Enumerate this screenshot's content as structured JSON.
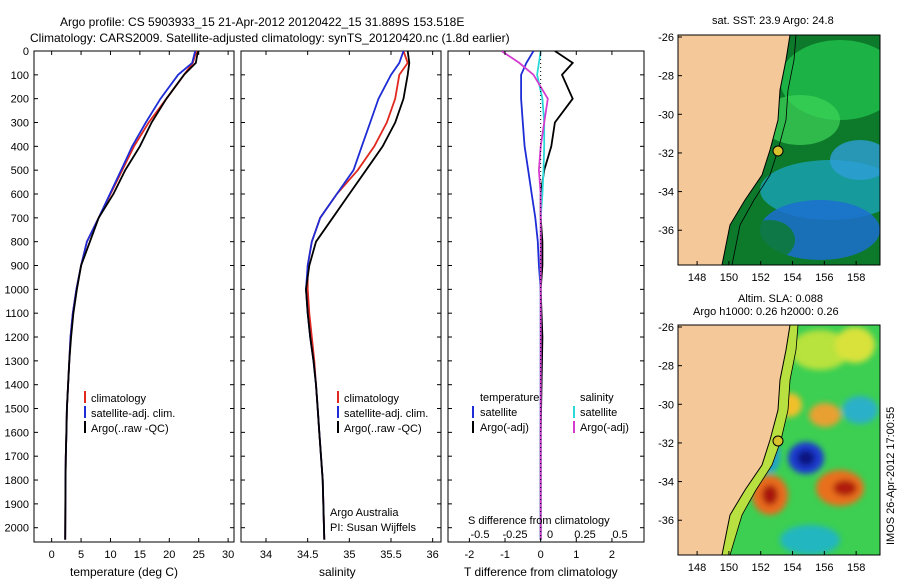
{
  "header": {
    "line1": "Argo profile: CS 5903933_15 21-Apr-2012 20120422_15 31.889S 153.518E",
    "line2": "Climatology: CARS2009. Satellite-adjusted climatology: synTS_20120420.nc (1.8d earlier)"
  },
  "colors": {
    "climatology": "#e0281e",
    "satellite": "#1e2cd6",
    "argo": "#000000",
    "sat_s": "#2ad8d8",
    "argo_s": "#d43cd0",
    "land": "#f5c89a"
  },
  "y_ticks": [
    "0",
    "100",
    "200",
    "300",
    "400",
    "500",
    "600",
    "700",
    "800",
    "900",
    "1000",
    "1100",
    "1200",
    "1300",
    "1400",
    "1500",
    "1600",
    "1700",
    "1800",
    "1900",
    "2000"
  ],
  "temp_panel": {
    "xlabel": "temperature (deg C)",
    "xticks": [
      "0",
      "5",
      "10",
      "15",
      "20",
      "25",
      "30"
    ],
    "legend": [
      "climatology",
      "satellite-adj. clim.",
      "Argo(..raw -QC)"
    ]
  },
  "sal_panel": {
    "xlabel": "salinity",
    "xticks": [
      "34",
      "34.5",
      "35",
      "35.5",
      "36"
    ],
    "legend": [
      "climatology",
      "satellite-adj. clim.",
      "Argo(..raw -QC)"
    ],
    "note1": "Argo Australia",
    "note2": "PI: Susan Wijffels"
  },
  "diff_panel": {
    "xlabel": "T difference from climatology",
    "xticks": [
      "-2",
      "-1",
      "0",
      "1",
      "2"
    ],
    "top_label": "S difference from climatology",
    "top_ticks": [
      "-0.5",
      "-0.25",
      "0",
      "0.25",
      "0.5"
    ],
    "legend_t_title": "temperature",
    "legend_s_title": "salinity",
    "legend_t": [
      "satellite",
      "Argo(-adj)"
    ],
    "legend_s": [
      "satellite",
      "Argo(-adj)"
    ]
  },
  "map_sst": {
    "title": "sat. SST: 23.9  Argo: 24.8",
    "yticks": [
      "-26",
      "-28",
      "-30",
      "-32",
      "-34",
      "-36"
    ],
    "xticks": [
      "148",
      "150",
      "152",
      "154",
      "156",
      "158"
    ]
  },
  "map_sla": {
    "title1": "Altim. SLA: 0.088",
    "title2": "Argo h1000: 0.26 h2000: 0.26",
    "yticks": [
      "-26",
      "-28",
      "-30",
      "-32",
      "-34",
      "-36"
    ],
    "xticks": [
      "148",
      "150",
      "152",
      "154",
      "156",
      "158"
    ]
  },
  "side_text": "IMOS 26-Apr-2012 17:00:55",
  "chart_data": [
    {
      "type": "line",
      "title": "",
      "xlabel": "temperature (deg C)",
      "ylabel": "",
      "xlim": [
        -3,
        31
      ],
      "ylim": [
        2060,
        0
      ],
      "series": [
        {
          "name": "climatology",
          "x": [
            24.6,
            24.0,
            22.5,
            19.5,
            16.5,
            14.0,
            12.0,
            10.0,
            8.0,
            6.0,
            5.0,
            4.2,
            3.6,
            3.2,
            3.0,
            2.8,
            2.6,
            2.5,
            2.4,
            2.35,
            2.3
          ],
          "y": [
            0,
            50,
            100,
            200,
            300,
            400,
            500,
            600,
            700,
            800,
            900,
            1000,
            1100,
            1200,
            1300,
            1400,
            1500,
            1600,
            1700,
            1800,
            2050
          ]
        },
        {
          "name": "satellite-adj. clim.",
          "x": [
            24.4,
            23.9,
            21.5,
            18.5,
            16.0,
            13.7,
            11.8,
            9.9,
            8.0,
            6.0,
            5.0,
            4.2,
            3.6,
            3.2,
            3.0,
            2.8,
            2.6,
            2.5,
            2.4,
            2.35,
            2.3
          ],
          "y": [
            0,
            50,
            100,
            200,
            300,
            400,
            500,
            600,
            700,
            800,
            900,
            1000,
            1100,
            1200,
            1300,
            1400,
            1500,
            1600,
            1700,
            1800,
            2050
          ]
        },
        {
          "name": "Argo(..raw -QC)",
          "x": [
            25.0,
            24.8,
            24.5,
            22.5,
            19.5,
            17.0,
            15.0,
            12.5,
            10.5,
            8.0,
            6.5,
            5.0,
            4.3,
            3.7,
            3.3,
            3.0,
            2.8,
            2.6,
            2.5,
            2.4,
            2.35,
            2.3
          ],
          "y": [
            0,
            10,
            50,
            100,
            200,
            300,
            400,
            500,
            600,
            700,
            800,
            900,
            1000,
            1100,
            1200,
            1300,
            1400,
            1500,
            1600,
            1700,
            1800,
            2050
          ]
        }
      ]
    },
    {
      "type": "line",
      "title": "",
      "xlabel": "salinity",
      "ylabel": "",
      "xlim": [
        33.7,
        36.1
      ],
      "ylim": [
        2060,
        0
      ],
      "series": [
        {
          "name": "climatology",
          "x": [
            35.65,
            35.7,
            35.6,
            35.55,
            35.45,
            35.3,
            35.1,
            34.85,
            34.65,
            34.55,
            34.5,
            34.5,
            34.52,
            34.55,
            34.58,
            34.6,
            34.62,
            34.64,
            34.66,
            34.68,
            34.7
          ],
          "y": [
            0,
            50,
            100,
            200,
            300,
            400,
            500,
            600,
            700,
            800,
            900,
            1000,
            1100,
            1200,
            1300,
            1400,
            1500,
            1600,
            1700,
            1800,
            2050
          ]
        },
        {
          "name": "satellite-adj. clim.",
          "x": [
            35.65,
            35.6,
            35.5,
            35.35,
            35.25,
            35.15,
            35.05,
            34.85,
            34.65,
            34.55,
            34.5,
            34.48,
            34.5,
            34.53,
            34.57,
            34.6,
            34.62,
            34.64,
            34.66,
            34.68,
            34.7
          ],
          "y": [
            0,
            50,
            100,
            200,
            300,
            400,
            500,
            600,
            700,
            800,
            900,
            1000,
            1100,
            1200,
            1300,
            1400,
            1500,
            1600,
            1700,
            1800,
            2050
          ]
        },
        {
          "name": "Argo(..raw -QC)",
          "x": [
            35.7,
            35.72,
            35.7,
            35.65,
            35.55,
            35.4,
            35.2,
            35.0,
            34.8,
            34.6,
            34.52,
            34.48,
            34.5,
            34.53,
            34.57,
            34.6,
            34.62,
            34.64,
            34.66,
            34.68,
            34.7
          ],
          "y": [
            0,
            50,
            100,
            200,
            300,
            400,
            500,
            600,
            700,
            800,
            900,
            1000,
            1100,
            1200,
            1300,
            1400,
            1500,
            1600,
            1700,
            1800,
            2050
          ]
        }
      ]
    },
    {
      "type": "line",
      "title": "",
      "xlabel": "T difference from climatology",
      "xlim": [
        -2.6,
        2.9
      ],
      "ylim": [
        2060,
        0
      ],
      "series": [
        {
          "name": "temperature satellite",
          "x": [
            -0.2,
            -0.4,
            -0.55,
            -0.55,
            -0.5,
            -0.45,
            -0.35,
            -0.25,
            -0.15,
            -0.08,
            -0.05,
            0,
            0,
            0,
            0
          ],
          "y": [
            0,
            50,
            100,
            200,
            300,
            400,
            500,
            600,
            700,
            800,
            900,
            1000,
            1200,
            1600,
            2050
          ]
        },
        {
          "name": "temperature Argo(-adj)",
          "x": [
            0.4,
            0.9,
            0.6,
            0.9,
            0.4,
            0.3,
            0.1,
            0.0,
            0.0,
            0.05,
            0.05,
            0.0,
            0.05,
            0.0,
            0.0
          ],
          "y": [
            0,
            50,
            100,
            200,
            300,
            400,
            500,
            600,
            700,
            800,
            900,
            1000,
            1200,
            1600,
            2050
          ]
        },
        {
          "name": "salinity satellite",
          "x": [
            0.0,
            -0.05,
            -0.1,
            0.05,
            0.1,
            0.1,
            0.08,
            0.05,
            0.0,
            0.0,
            0.0,
            0.0,
            0.0,
            0.0,
            0.0
          ],
          "y": [
            0,
            50,
            100,
            200,
            300,
            400,
            500,
            600,
            700,
            800,
            900,
            1000,
            1200,
            1600,
            2050
          ]
        },
        {
          "name": "salinity Argo(-adj)",
          "x": [
            -1.1,
            -0.6,
            -0.2,
            0.2,
            0.1,
            0.0,
            -0.05,
            0.0,
            0.0,
            0.0,
            0.0,
            0.0,
            0.0,
            0.0,
            0.0
          ],
          "y": [
            0,
            50,
            100,
            200,
            300,
            400,
            500,
            600,
            700,
            800,
            900,
            1000,
            1200,
            1600,
            2050
          ]
        }
      ]
    }
  ]
}
